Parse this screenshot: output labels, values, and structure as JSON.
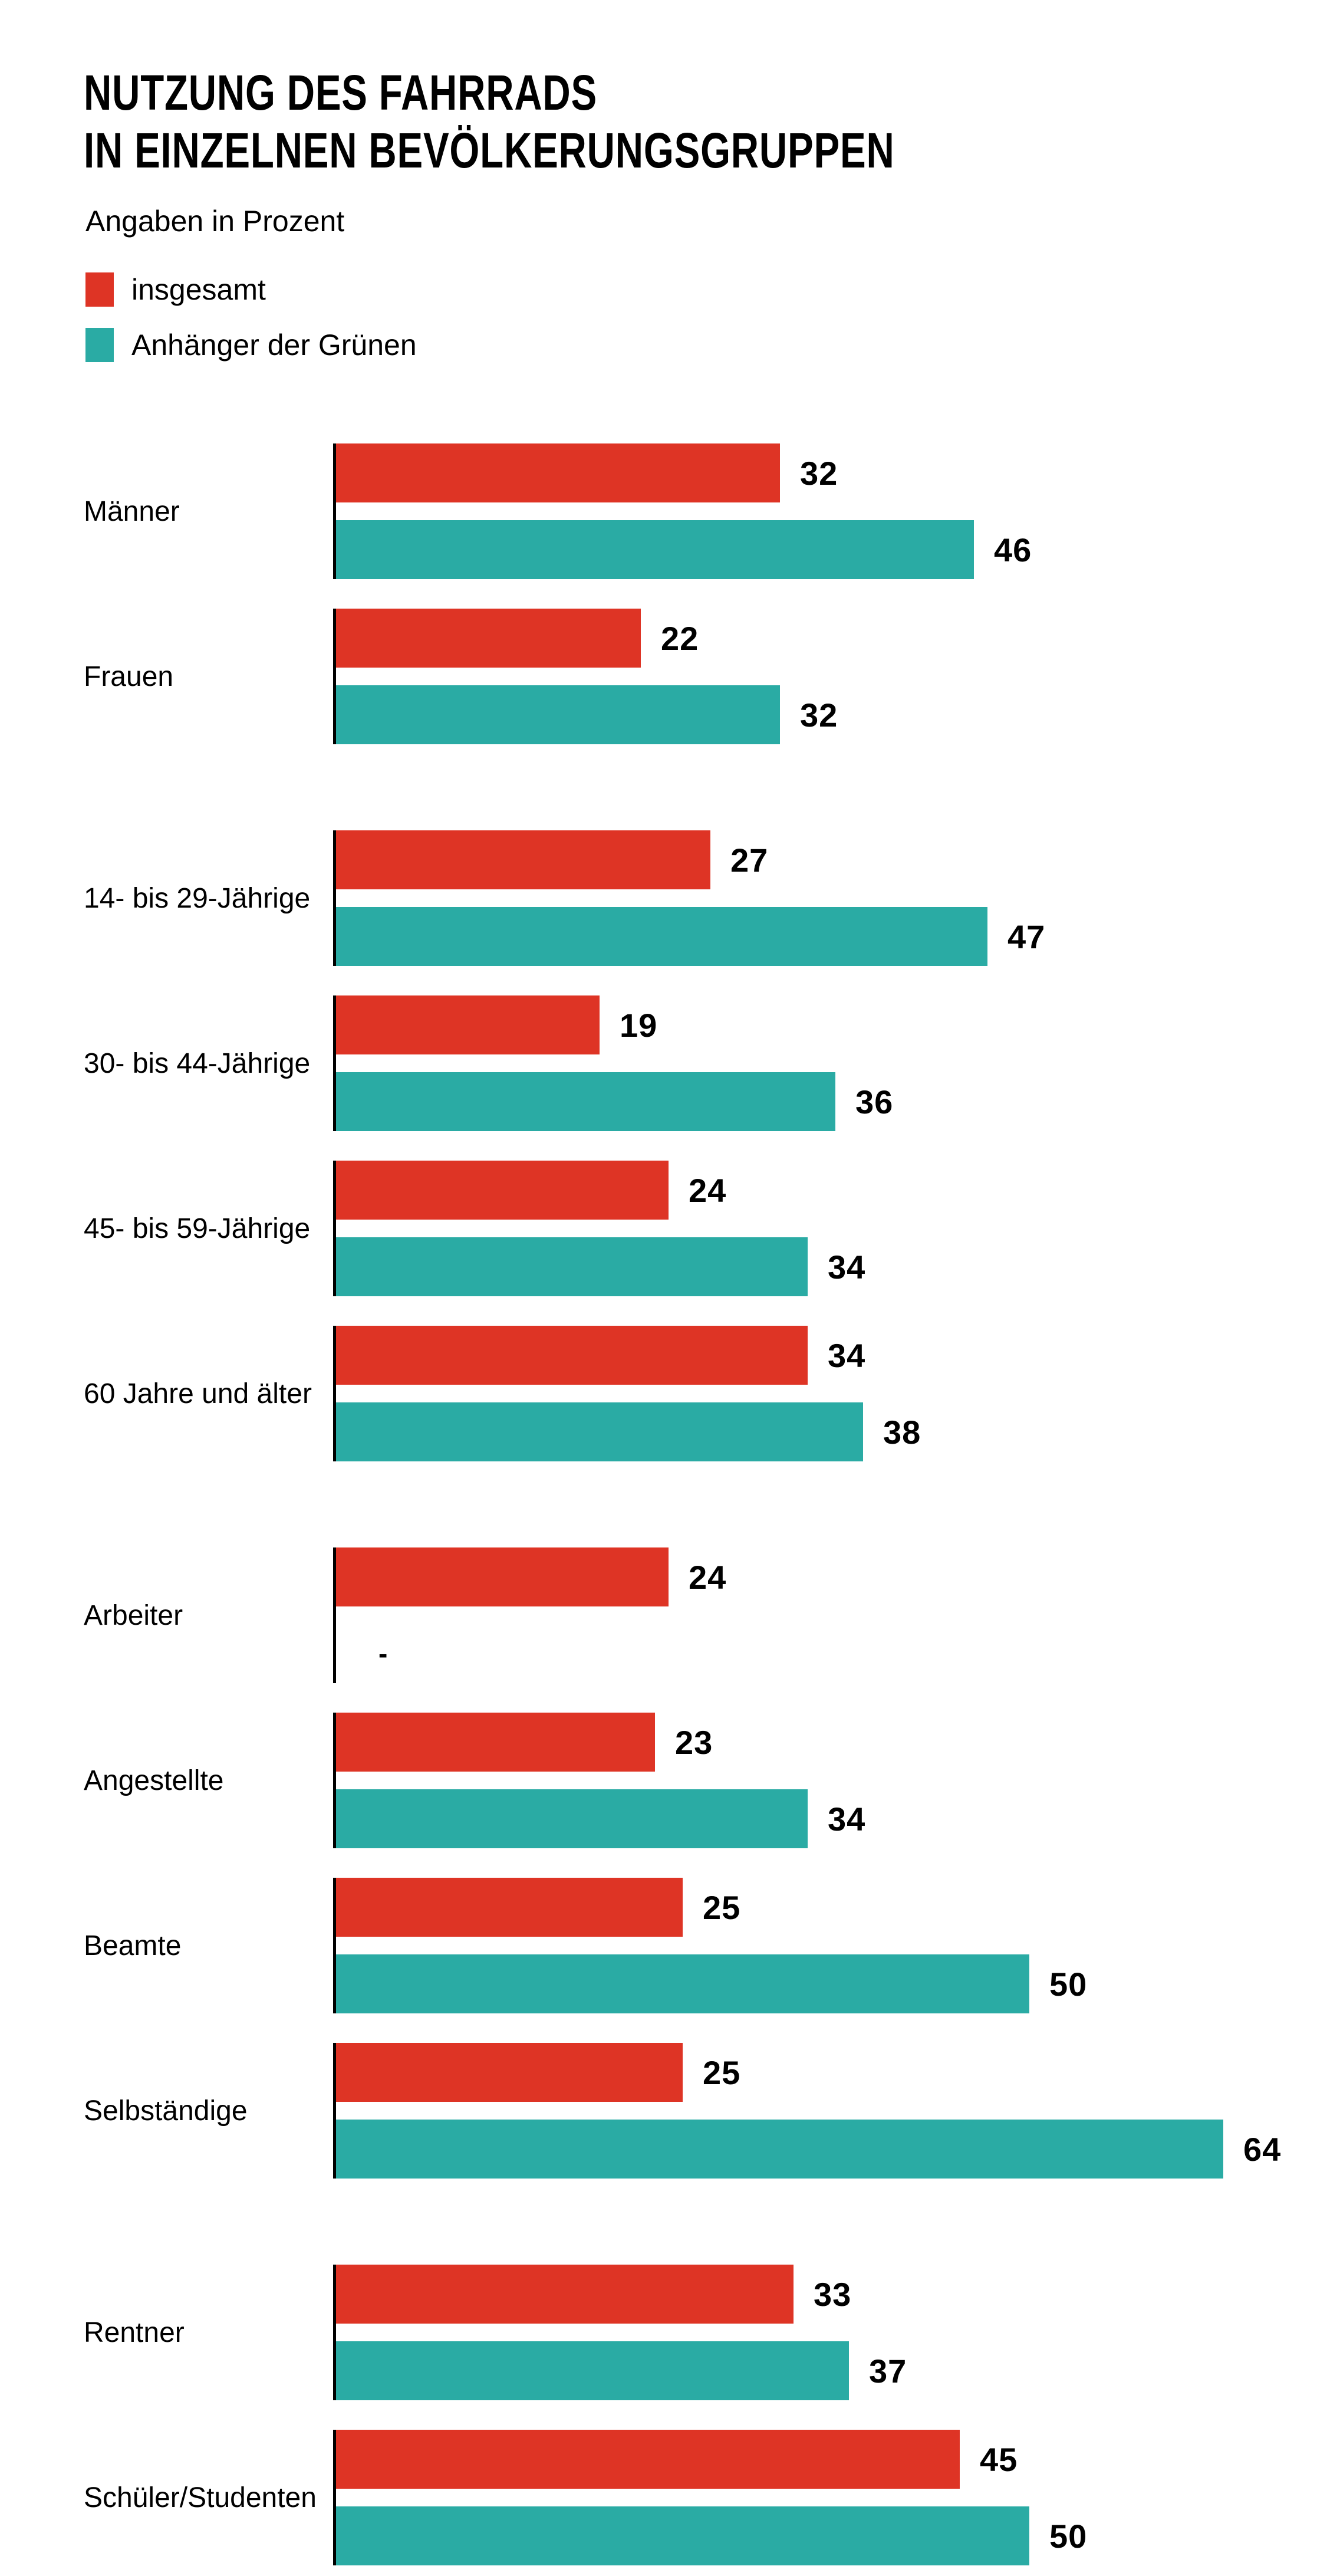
{
  "chart_data": {
    "type": "bar",
    "orientation": "horizontal",
    "title": "NUTZUNG DES FAHRRADS IN EINZELNEN BEVÖLKERUNGSGRUPPEN",
    "title_lines": [
      "NUTZUNG DES FAHRRADS",
      "IN EINZELNEN BEVÖLKERUNGSGRUPPEN"
    ],
    "subtitle": "Angaben in Prozent",
    "unit": "percent",
    "xlim": [
      0,
      64
    ],
    "max_value": 64,
    "grid": false,
    "legend_position": "top-left",
    "no_data_symbol": "-",
    "legend": [
      {
        "name": "insgesamt",
        "color": "#de3425"
      },
      {
        "name": "Anhänger der Grünen",
        "color": "#2aaba4"
      }
    ],
    "series_names": [
      "insgesamt",
      "Anhänger der Grünen"
    ],
    "categories": [
      "Männer",
      "Frauen",
      "14- bis 29-Jährige",
      "30- bis 44-Jährige",
      "45- bis 59-Jährige",
      "60 Jahre und älter",
      "Arbeiter",
      "Angestellte",
      "Beamte",
      "Selbständige",
      "Rentner",
      "Schüler/Studenten"
    ],
    "series": [
      {
        "name": "insgesamt",
        "values": [
          32,
          22,
          27,
          19,
          24,
          34,
          24,
          23,
          25,
          25,
          33,
          45
        ]
      },
      {
        "name": "Anhänger der Grünen",
        "values": [
          46,
          32,
          47,
          36,
          34,
          38,
          null,
          34,
          50,
          64,
          37,
          50
        ]
      }
    ],
    "groups": [
      {
        "label": "Männer",
        "insgesamt": 32,
        "gruene": 46,
        "section_end": false
      },
      {
        "label": "Frauen",
        "insgesamt": 22,
        "gruene": 32,
        "section_end": true
      },
      {
        "label": "14- bis 29-Jährige",
        "insgesamt": 27,
        "gruene": 47,
        "section_end": false
      },
      {
        "label": "30- bis 44-Jährige",
        "insgesamt": 19,
        "gruene": 36,
        "section_end": false
      },
      {
        "label": "45- bis 59-Jährige",
        "insgesamt": 24,
        "gruene": 34,
        "section_end": false
      },
      {
        "label": "60 Jahre und älter",
        "insgesamt": 34,
        "gruene": 38,
        "section_end": true
      },
      {
        "label": "Arbeiter",
        "insgesamt": 24,
        "gruene": null,
        "gruene_display": "-",
        "section_end": false
      },
      {
        "label": "Angestellte",
        "insgesamt": 23,
        "gruene": 34,
        "section_end": false
      },
      {
        "label": "Beamte",
        "insgesamt": 25,
        "gruene": 50,
        "section_end": false
      },
      {
        "label": "Selbständige",
        "insgesamt": 25,
        "gruene": 64,
        "section_end": true
      },
      {
        "label": "Rentner",
        "insgesamt": 33,
        "gruene": 37,
        "section_end": false
      },
      {
        "label": "Schüler/Studenten",
        "insgesamt": 45,
        "gruene": 50,
        "section_end": false
      }
    ]
  }
}
